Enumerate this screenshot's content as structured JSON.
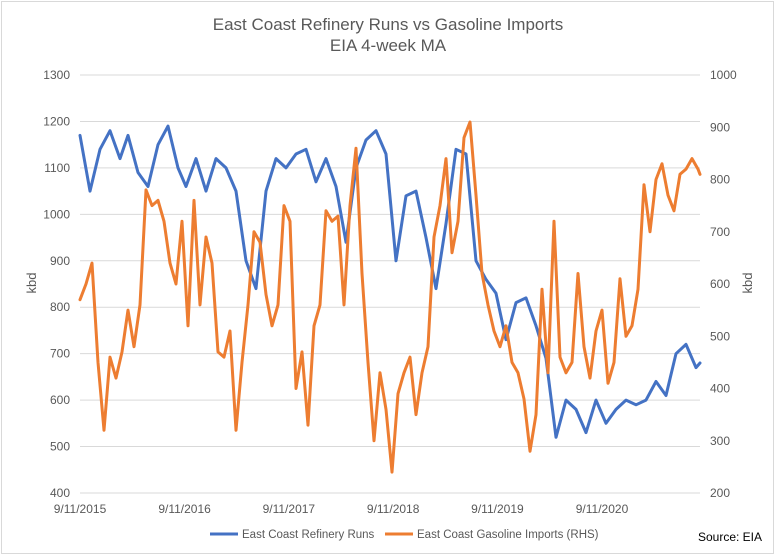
{
  "chart_data": {
    "type": "line",
    "title": "East Coast Refinery Runs vs Gasoline Imports",
    "subtitle": "EIA 4-week MA",
    "ylabel": "kbd",
    "y2label": "kbd",
    "source": "Source: EIA",
    "x_tick_labels": [
      "9/11/2015",
      "9/11/2016",
      "9/11/2017",
      "9/11/2018",
      "9/11/2019",
      "9/11/2020"
    ],
    "x_range": [
      "2015-09-11",
      "2021-08-20"
    ],
    "ylim": [
      400,
      1300
    ],
    "y_ticks": [
      400,
      500,
      600,
      700,
      800,
      900,
      1000,
      1100,
      1200,
      1300
    ],
    "y2lim": [
      200,
      1000
    ],
    "y2_ticks": [
      200,
      300,
      400,
      500,
      600,
      700,
      800,
      900,
      1000
    ],
    "grid": true,
    "legend_position": "bottom",
    "colors": {
      "runs": "#4472C4",
      "imports": "#ED7D31",
      "grid": "#d9d9d9"
    },
    "series": [
      {
        "name": "East Coast Refinery Runs",
        "axis": "left",
        "x": [
          "2015-09-11",
          "2015-10-16",
          "2015-11-20",
          "2015-12-25",
          "2016-01-29",
          "2016-02-26",
          "2016-04-01",
          "2016-05-06",
          "2016-06-10",
          "2016-07-15",
          "2016-08-19",
          "2016-09-16",
          "2016-10-21",
          "2016-11-25",
          "2016-12-30",
          "2017-02-03",
          "2017-03-10",
          "2017-04-14",
          "2017-05-19",
          "2017-06-23",
          "2017-07-28",
          "2017-09-01",
          "2017-10-06",
          "2017-11-10",
          "2017-12-15",
          "2018-01-19",
          "2018-02-23",
          "2018-03-30",
          "2018-05-04",
          "2018-06-08",
          "2018-07-13",
          "2018-08-17",
          "2018-09-21",
          "2018-10-26",
          "2018-11-30",
          "2019-01-04",
          "2019-02-08",
          "2019-03-15",
          "2019-04-19",
          "2019-05-24",
          "2019-06-28",
          "2019-08-02",
          "2019-09-06",
          "2019-10-11",
          "2019-11-15",
          "2019-12-20",
          "2020-01-24",
          "2020-02-28",
          "2020-04-03",
          "2020-05-08",
          "2020-06-12",
          "2020-07-17",
          "2020-08-21",
          "2020-09-25",
          "2020-10-30",
          "2020-12-04",
          "2021-01-08",
          "2021-02-12",
          "2021-03-19",
          "2021-04-23",
          "2021-05-28",
          "2021-07-02",
          "2021-08-06",
          "2021-08-20"
        ],
        "values": [
          1170,
          1050,
          1140,
          1180,
          1120,
          1170,
          1090,
          1060,
          1150,
          1190,
          1100,
          1060,
          1120,
          1050,
          1120,
          1100,
          1050,
          900,
          840,
          1050,
          1120,
          1100,
          1130,
          1140,
          1070,
          1120,
          1060,
          940,
          1100,
          1160,
          1180,
          1130,
          900,
          1040,
          1050,
          950,
          840,
          980,
          1140,
          1130,
          900,
          860,
          830,
          730,
          810,
          820,
          760,
          690,
          520,
          600,
          580,
          530,
          600,
          550,
          580,
          600,
          590,
          600,
          640,
          610,
          700,
          720,
          670,
          680
        ]
      },
      {
        "name": "East Coast Gasoline Imports (RHS)",
        "axis": "right",
        "x": [
          "2015-09-11",
          "2015-10-02",
          "2015-10-23",
          "2015-11-13",
          "2015-12-04",
          "2015-12-25",
          "2016-01-15",
          "2016-02-05",
          "2016-02-26",
          "2016-03-18",
          "2016-04-08",
          "2016-04-29",
          "2016-05-20",
          "2016-06-10",
          "2016-07-01",
          "2016-07-22",
          "2016-08-12",
          "2016-09-02",
          "2016-09-23",
          "2016-10-14",
          "2016-11-04",
          "2016-11-25",
          "2016-12-16",
          "2017-01-06",
          "2017-01-27",
          "2017-02-17",
          "2017-03-10",
          "2017-03-31",
          "2017-04-21",
          "2017-05-12",
          "2017-06-02",
          "2017-06-23",
          "2017-07-14",
          "2017-08-04",
          "2017-08-25",
          "2017-09-15",
          "2017-10-06",
          "2017-10-27",
          "2017-11-17",
          "2017-12-08",
          "2017-12-29",
          "2018-01-19",
          "2018-02-09",
          "2018-03-02",
          "2018-03-23",
          "2018-04-13",
          "2018-05-04",
          "2018-05-25",
          "2018-06-15",
          "2018-07-06",
          "2018-07-27",
          "2018-08-17",
          "2018-09-07",
          "2018-09-28",
          "2018-10-19",
          "2018-11-09",
          "2018-11-30",
          "2018-12-21",
          "2019-01-11",
          "2019-02-01",
          "2019-02-22",
          "2019-03-15",
          "2019-04-05",
          "2019-04-26",
          "2019-05-17",
          "2019-06-07",
          "2019-06-28",
          "2019-07-19",
          "2019-08-09",
          "2019-08-30",
          "2019-09-20",
          "2019-10-11",
          "2019-11-01",
          "2019-11-22",
          "2019-12-13",
          "2020-01-03",
          "2020-01-24",
          "2020-02-14",
          "2020-03-06",
          "2020-03-27",
          "2020-04-17",
          "2020-05-08",
          "2020-05-29",
          "2020-06-19",
          "2020-07-10",
          "2020-07-31",
          "2020-08-21",
          "2020-09-11",
          "2020-10-02",
          "2020-10-23",
          "2020-11-13",
          "2020-12-04",
          "2020-12-25",
          "2021-01-15",
          "2021-02-05",
          "2021-02-26",
          "2021-03-19",
          "2021-04-09",
          "2021-04-30",
          "2021-05-21",
          "2021-06-11",
          "2021-07-02",
          "2021-07-23",
          "2021-08-13",
          "2021-08-20"
        ],
        "values": [
          570,
          600,
          640,
          450,
          320,
          460,
          420,
          470,
          550,
          480,
          560,
          780,
          750,
          760,
          720,
          640,
          600,
          720,
          520,
          760,
          560,
          690,
          640,
          470,
          460,
          510,
          320,
          450,
          560,
          700,
          680,
          580,
          520,
          560,
          750,
          720,
          400,
          470,
          330,
          520,
          560,
          740,
          720,
          730,
          560,
          750,
          860,
          620,
          450,
          300,
          430,
          360,
          240,
          390,
          430,
          460,
          350,
          430,
          480,
          690,
          750,
          840,
          660,
          720,
          880,
          910,
          770,
          620,
          560,
          510,
          480,
          520,
          450,
          430,
          380,
          280,
          350,
          590,
          430,
          720,
          460,
          430,
          450,
          620,
          480,
          420,
          510,
          550,
          410,
          450,
          610,
          500,
          520,
          590,
          790,
          700,
          800,
          830,
          770,
          740,
          810,
          820,
          840,
          820,
          810
        ]
      }
    ]
  }
}
